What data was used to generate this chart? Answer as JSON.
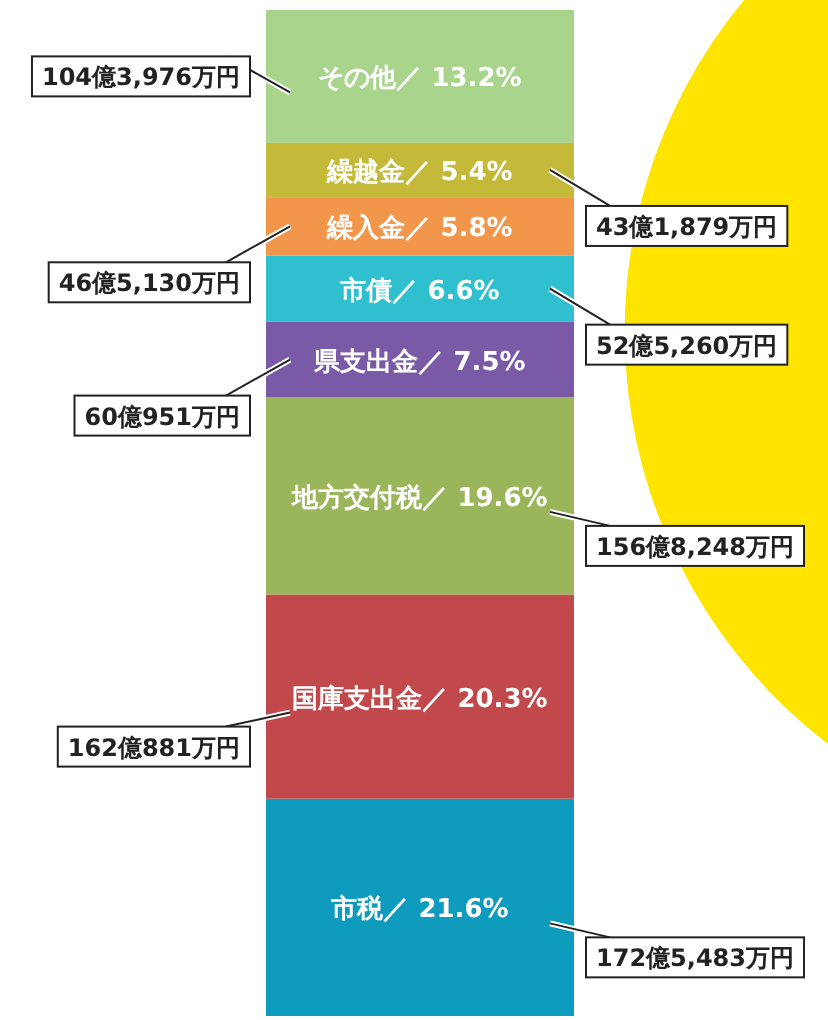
{
  "chart_data": {
    "type": "bar",
    "stacked": true,
    "tick_labels": false,
    "categories": [
      null
    ],
    "series": [
      {
        "name": "市税",
        "color": "#0e9bbd",
        "values": [
          21.6
        ],
        "value_labels": [
          "／ 21.6%"
        ]
      },
      {
        "name": "国庫支出金",
        "color": "#c1484b",
        "values": [
          20.3
        ],
        "value_labels": [
          "／ 20.3%"
        ]
      },
      {
        "name": "地方交付税",
        "color": "#9bb65a",
        "values": [
          19.6
        ],
        "value_labels": [
          "／ 19.6%"
        ]
      },
      {
        "name": "県支出金",
        "color": "#7a5aa7",
        "values": [
          7.5
        ],
        "value_labels": [
          "／ 7.5%"
        ]
      },
      {
        "name": "市債",
        "color": "#2fbfcf",
        "values": [
          6.6
        ],
        "value_labels": [
          "／ 6.6%"
        ]
      },
      {
        "name": "繰入金",
        "color": "#f2964b",
        "values": [
          5.8
        ],
        "value_labels": [
          "／ 5.8%"
        ]
      },
      {
        "name": "繰越金",
        "color": "#c5b93a",
        "values": [
          5.4
        ],
        "value_labels": [
          "／ 5.4%"
        ]
      },
      {
        "name": "その他",
        "color": "#a9d48b",
        "values": [
          13.2
        ],
        "value_labels": [
          "／ 13.2%"
        ]
      }
    ],
    "annotations": [
      "172億5,483万円",
      "162億881万円",
      "156億8,248万円",
      "60億951万円",
      "52億5,260万円",
      "46億5,130万円",
      "43億1,879万円",
      "104億3,976万円"
    ]
  }
}
